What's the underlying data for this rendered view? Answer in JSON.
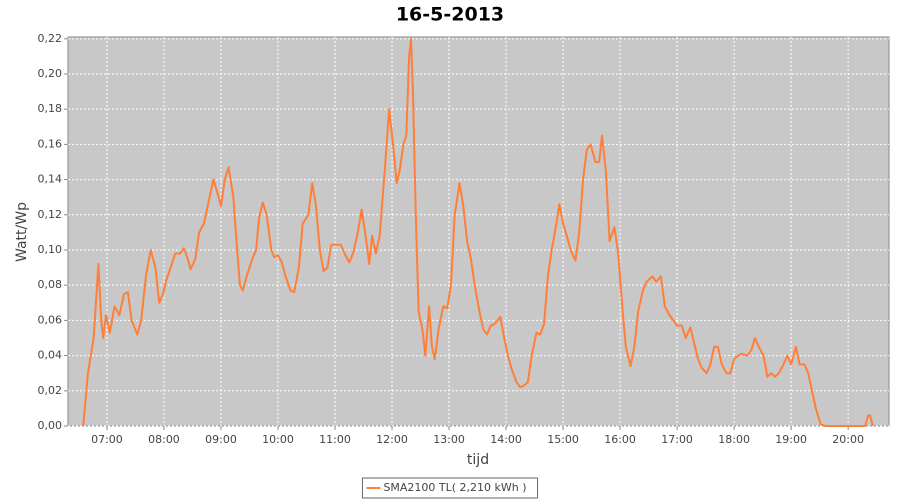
{
  "chart_data": {
    "type": "line",
    "title": "16-5-2013",
    "x_label": "tijd",
    "y_label": "Watt/Wp",
    "grid": true,
    "legend": "bottom",
    "xlim": [
      379,
      1243
    ],
    "ylim": [
      0,
      0.221
    ],
    "xticks": [
      {
        "value": 420,
        "label": "07:00"
      },
      {
        "value": 480,
        "label": "08:00"
      },
      {
        "value": 540,
        "label": "09:00"
      },
      {
        "value": 600,
        "label": "10:00"
      },
      {
        "value": 660,
        "label": "11:00"
      },
      {
        "value": 720,
        "label": "12:00"
      },
      {
        "value": 780,
        "label": "13:00"
      },
      {
        "value": 840,
        "label": "14:00"
      },
      {
        "value": 900,
        "label": "15:00"
      },
      {
        "value": 960,
        "label": "16:00"
      },
      {
        "value": 1020,
        "label": "17:00"
      },
      {
        "value": 1080,
        "label": "18:00"
      },
      {
        "value": 1140,
        "label": "19:00"
      },
      {
        "value": 1200,
        "label": "20:00"
      }
    ],
    "yticks": [
      {
        "value": 0,
        "label": "0,00"
      },
      {
        "value": 0.02,
        "label": "0,02"
      },
      {
        "value": 0.04,
        "label": "0,04"
      },
      {
        "value": 0.06,
        "label": "0,06"
      },
      {
        "value": 0.08,
        "label": "0,08"
      },
      {
        "value": 0.1,
        "label": "0,10"
      },
      {
        "value": 0.12,
        "label": "0,12"
      },
      {
        "value": 0.14,
        "label": "0,14"
      },
      {
        "value": 0.16,
        "label": "0,16"
      },
      {
        "value": 0.18,
        "label": "0,18"
      },
      {
        "value": 0.2,
        "label": "0,20"
      },
      {
        "value": 0.22,
        "label": "0,22"
      }
    ],
    "x": [
      395,
      400,
      406,
      411,
      414,
      416,
      419,
      423,
      428,
      433,
      438,
      442,
      446,
      452,
      456,
      461,
      466,
      471,
      475,
      479,
      482,
      487,
      492,
      497,
      501,
      505,
      508,
      513,
      517,
      522,
      526,
      532,
      536,
      540,
      544,
      548,
      553,
      557,
      560,
      563,
      567,
      573,
      577,
      580,
      584,
      588,
      593,
      596,
      600,
      604,
      608,
      613,
      617,
      622,
      626,
      632,
      636,
      640,
      644,
      648,
      652,
      656,
      661,
      666,
      671,
      675,
      679,
      684,
      688,
      693,
      696,
      699,
      703,
      707,
      713,
      717,
      721,
      725,
      728,
      732,
      735,
      738,
      740,
      742,
      745,
      748,
      752,
      755,
      759,
      762,
      765,
      769,
      774,
      778,
      782,
      786,
      791,
      795,
      799,
      803,
      807,
      812,
      816,
      820,
      824,
      828,
      834,
      838,
      842,
      846,
      851,
      855,
      859,
      863,
      867,
      872,
      876,
      880,
      884,
      888,
      893,
      896,
      900,
      904,
      908,
      913,
      917,
      921,
      925,
      929,
      934,
      938,
      941,
      945,
      949,
      954,
      958,
      962,
      966,
      971,
      975,
      979,
      984,
      988,
      994,
      998,
      1003,
      1007,
      1012,
      1016,
      1020,
      1025,
      1029,
      1034,
      1038,
      1042,
      1046,
      1051,
      1055,
      1059,
      1063,
      1067,
      1072,
      1076,
      1080,
      1084,
      1088,
      1094,
      1098,
      1102,
      1106,
      1111,
      1115,
      1119,
      1123,
      1127,
      1132,
      1136,
      1140,
      1145,
      1149,
      1154,
      1158,
      1162,
      1166,
      1171,
      1176,
      1218,
      1221,
      1223,
      1226
    ],
    "series": [
      {
        "name": "SMA2100 TL( 2,210 kWh )",
        "color": "#ff7f3a",
        "values": [
          0,
          0.03,
          0.05,
          0.092,
          0.06,
          0.05,
          0.063,
          0.053,
          0.068,
          0.063,
          0.075,
          0.076,
          0.06,
          0.052,
          0.06,
          0.085,
          0.1,
          0.09,
          0.07,
          0.075,
          0.082,
          0.09,
          0.098,
          0.098,
          0.101,
          0.095,
          0.089,
          0.095,
          0.11,
          0.115,
          0.125,
          0.14,
          0.133,
          0.125,
          0.14,
          0.147,
          0.13,
          0.1,
          0.08,
          0.077,
          0.085,
          0.095,
          0.1,
          0.118,
          0.127,
          0.12,
          0.1,
          0.096,
          0.097,
          0.093,
          0.085,
          0.077,
          0.076,
          0.09,
          0.115,
          0.12,
          0.138,
          0.125,
          0.1,
          0.088,
          0.09,
          0.103,
          0.103,
          0.103,
          0.097,
          0.093,
          0.098,
          0.11,
          0.123,
          0.105,
          0.092,
          0.108,
          0.098,
          0.108,
          0.15,
          0.18,
          0.16,
          0.138,
          0.145,
          0.16,
          0.165,
          0.21,
          0.22,
          0.19,
          0.12,
          0.065,
          0.055,
          0.04,
          0.068,
          0.045,
          0.038,
          0.055,
          0.068,
          0.067,
          0.08,
          0.12,
          0.138,
          0.125,
          0.105,
          0.095,
          0.08,
          0.065,
          0.055,
          0.052,
          0.057,
          0.058,
          0.062,
          0.05,
          0.04,
          0.032,
          0.025,
          0.022,
          0.023,
          0.025,
          0.04,
          0.053,
          0.052,
          0.058,
          0.085,
          0.1,
          0.115,
          0.126,
          0.115,
          0.108,
          0.1,
          0.094,
          0.11,
          0.14,
          0.157,
          0.16,
          0.15,
          0.15,
          0.165,
          0.145,
          0.105,
          0.113,
          0.098,
          0.07,
          0.045,
          0.034,
          0.045,
          0.065,
          0.077,
          0.082,
          0.085,
          0.082,
          0.085,
          0.068,
          0.063,
          0.06,
          0.057,
          0.057,
          0.05,
          0.056,
          0.047,
          0.038,
          0.033,
          0.03,
          0.035,
          0.045,
          0.045,
          0.035,
          0.03,
          0.03,
          0.038,
          0.04,
          0.041,
          0.04,
          0.043,
          0.05,
          0.045,
          0.04,
          0.028,
          0.03,
          0.028,
          0.03,
          0.035,
          0.04,
          0.035,
          0.045,
          0.035,
          0.035,
          0.03,
          0.02,
          0.01,
          0.001,
          0,
          0,
          0.006,
          0.006,
          0
        ]
      }
    ]
  }
}
